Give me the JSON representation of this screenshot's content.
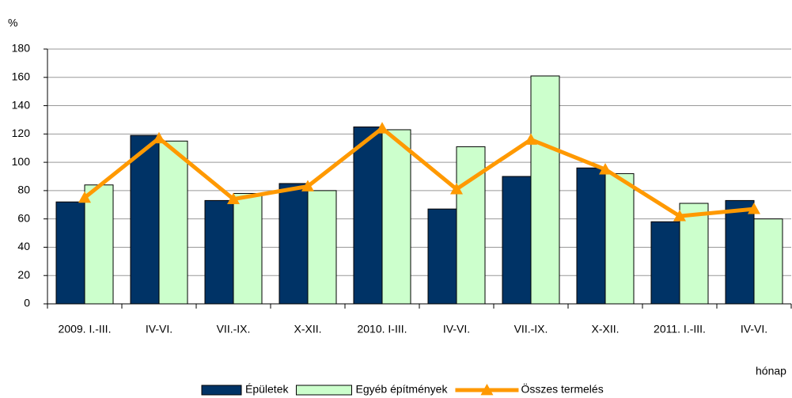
{
  "chart_data": {
    "type": "bar",
    "y_label": "%",
    "x_label": "hónap",
    "categories": [
      "2009. I.-III.",
      "IV-VI.",
      "VII.-IX.",
      "X-XII.",
      "2010. I-III.",
      "IV-VI.",
      "VII.-IX.",
      "X-XII.",
      "2011. I.-III.",
      "IV-VI."
    ],
    "series": [
      {
        "name": "Épületek",
        "color": "#003366",
        "type": "bar",
        "values": [
          72,
          119,
          73,
          85,
          125,
          67,
          90,
          96,
          58,
          73
        ]
      },
      {
        "name": "Egyéb építmények",
        "color": "#ccffcc",
        "type": "bar",
        "values": [
          84,
          115,
          78,
          80,
          123,
          111,
          161,
          92,
          71,
          60
        ]
      },
      {
        "name": "Összes termelés",
        "color": "#ff9900",
        "type": "line",
        "values": [
          75,
          117,
          74,
          83,
          124,
          81,
          116,
          95,
          62,
          67
        ]
      }
    ],
    "ylim": [
      0,
      180
    ],
    "yticks": [
      0,
      20,
      40,
      60,
      80,
      100,
      120,
      140,
      160,
      180
    ],
    "grid": true,
    "legend": "bottom"
  }
}
